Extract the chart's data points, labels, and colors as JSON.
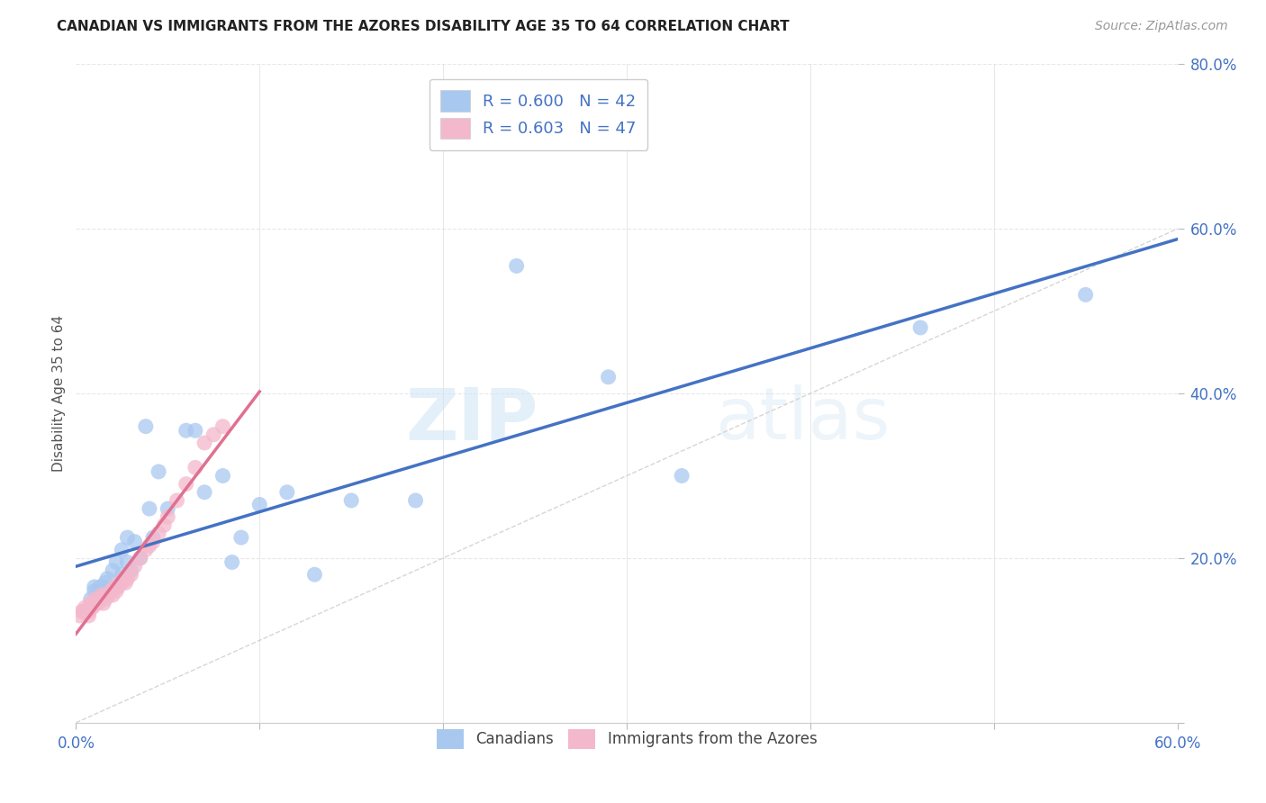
{
  "title": "CANADIAN VS IMMIGRANTS FROM THE AZORES DISABILITY AGE 35 TO 64 CORRELATION CHART",
  "source": "Source: ZipAtlas.com",
  "ylabel_label": "Disability Age 35 to 64",
  "xlim": [
    0.0,
    0.6
  ],
  "ylim": [
    0.0,
    0.8
  ],
  "xticks": [
    0.0,
    0.1,
    0.2,
    0.3,
    0.4,
    0.5,
    0.6
  ],
  "yticks": [
    0.0,
    0.2,
    0.4,
    0.6,
    0.8
  ],
  "xtick_labels": [
    "0.0%",
    "",
    "",
    "",
    "",
    "",
    "60.0%"
  ],
  "ytick_labels": [
    "",
    "20.0%",
    "40.0%",
    "60.0%",
    "80.0%"
  ],
  "canadian_R": 0.6,
  "canadian_N": 42,
  "azores_R": 0.603,
  "azores_N": 47,
  "canadian_color": "#a8c8f0",
  "azores_color": "#f4b8cc",
  "canadian_line_color": "#4472c4",
  "azores_line_color": "#e07090",
  "diagonal_color": "#cccccc",
  "watermark_zip": "ZIP",
  "watermark_atlas": "atlas",
  "canadian_scatter_x": [
    0.005,
    0.008,
    0.01,
    0.01,
    0.012,
    0.013,
    0.015,
    0.015,
    0.016,
    0.017,
    0.018,
    0.02,
    0.022,
    0.022,
    0.025,
    0.025,
    0.028,
    0.028,
    0.03,
    0.032,
    0.035,
    0.038,
    0.04,
    0.042,
    0.045,
    0.05,
    0.06,
    0.065,
    0.07,
    0.08,
    0.085,
    0.09,
    0.1,
    0.115,
    0.13,
    0.15,
    0.185,
    0.24,
    0.29,
    0.33,
    0.46,
    0.55
  ],
  "canadian_scatter_y": [
    0.135,
    0.15,
    0.16,
    0.165,
    0.155,
    0.165,
    0.155,
    0.165,
    0.17,
    0.175,
    0.16,
    0.185,
    0.165,
    0.195,
    0.18,
    0.21,
    0.195,
    0.225,
    0.185,
    0.22,
    0.2,
    0.36,
    0.26,
    0.225,
    0.305,
    0.26,
    0.355,
    0.355,
    0.28,
    0.3,
    0.195,
    0.225,
    0.265,
    0.28,
    0.18,
    0.27,
    0.27,
    0.555,
    0.42,
    0.3,
    0.48,
    0.52
  ],
  "azores_scatter_x": [
    0.002,
    0.003,
    0.004,
    0.005,
    0.006,
    0.007,
    0.007,
    0.008,
    0.008,
    0.009,
    0.01,
    0.01,
    0.011,
    0.012,
    0.013,
    0.014,
    0.015,
    0.015,
    0.016,
    0.017,
    0.018,
    0.019,
    0.02,
    0.021,
    0.022,
    0.022,
    0.023,
    0.024,
    0.025,
    0.026,
    0.027,
    0.028,
    0.03,
    0.032,
    0.035,
    0.038,
    0.04,
    0.042,
    0.045,
    0.048,
    0.05,
    0.055,
    0.06,
    0.065,
    0.07,
    0.075,
    0.08
  ],
  "azores_scatter_y": [
    0.13,
    0.135,
    0.135,
    0.14,
    0.135,
    0.13,
    0.135,
    0.14,
    0.145,
    0.14,
    0.145,
    0.15,
    0.145,
    0.145,
    0.15,
    0.155,
    0.145,
    0.155,
    0.15,
    0.155,
    0.155,
    0.16,
    0.155,
    0.165,
    0.16,
    0.165,
    0.165,
    0.17,
    0.17,
    0.175,
    0.17,
    0.175,
    0.18,
    0.19,
    0.2,
    0.21,
    0.215,
    0.22,
    0.23,
    0.24,
    0.25,
    0.27,
    0.29,
    0.31,
    0.34,
    0.35,
    0.36
  ],
  "background_color": "#ffffff",
  "grid_color": "#e8e8e8",
  "legend_text_color": "#4472c4",
  "axis_tick_color": "#4472c4"
}
